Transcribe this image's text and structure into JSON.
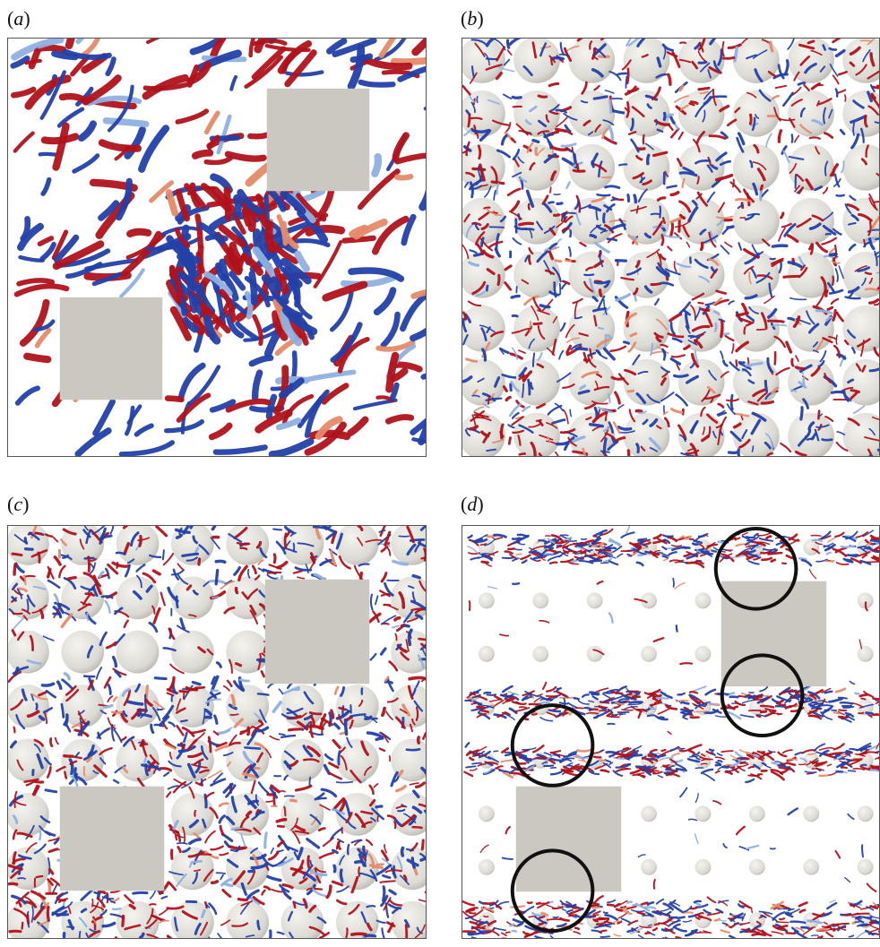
{
  "figure": {
    "panels": [
      {
        "id": "a",
        "label": "a",
        "kind": "two-blocks-no-spheres"
      },
      {
        "id": "b",
        "label": "b",
        "kind": "dense-sphere-array"
      },
      {
        "id": "c",
        "label": "c",
        "kind": "blocks-with-sphere-array"
      },
      {
        "id": "d",
        "label": "d",
        "kind": "blocks-with-sparse-spheres-circled"
      }
    ],
    "colors": {
      "positive_vortex": "#b0121b",
      "negative_vortex": "#2340a8",
      "light_red": "#e58a6a",
      "light_blue": "#8fb0e0",
      "block": "#cbc8c1",
      "sphere_light": "#f4f3ef",
      "sphere_dark": "#bdbab3",
      "frame": "#555555",
      "annotation_circle": "#111111"
    }
  }
}
